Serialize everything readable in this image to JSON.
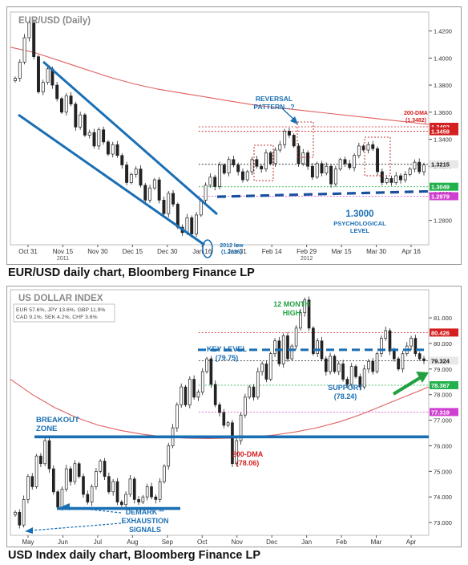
{
  "chart_data": [
    {
      "type": "candlestick",
      "title": "EUR/USD (Daily)",
      "caption": "EUR/USD daily chart, Bloomberg Finance LP",
      "x_labels": [
        "Oct 31",
        "Nov 15",
        "Nov 30",
        "Dec 15",
        "Dec 30",
        "Jan 16",
        "Jan 31",
        "Feb 14",
        "Feb 29",
        "Mar 15",
        "Mar 30",
        "Apr 16"
      ],
      "x_sublabels": [
        {
          "at": "Nov 15",
          "text": "2011"
        },
        {
          "at": "Feb 29",
          "text": "2012"
        }
      ],
      "ylim": [
        1.262,
        1.434
      ],
      "y_ticks": [
        1.42,
        1.4,
        1.38,
        1.36,
        1.34,
        1.32,
        1.3,
        1.28
      ],
      "y_tick_labels": [
        "1.4200",
        "1.4000",
        "1.3800",
        "1.3600",
        "1.3400",
        "1.3200",
        "1.3000",
        "1.2800"
      ],
      "price_markers": [
        {
          "value": 1.3492,
          "label": "1.3492",
          "color": "#d42020"
        },
        {
          "value": 1.3459,
          "label": "1.3459",
          "color": "#d42020"
        },
        {
          "value": 1.3215,
          "label": "1.3215",
          "color": "#222222"
        },
        {
          "value": 1.3049,
          "label": "1.3049",
          "color": "#22b14c"
        },
        {
          "value": 1.2979,
          "label": "1.2979",
          "color": "#d040d0"
        }
      ],
      "dma_200": {
        "label": "200-DMA",
        "value_label": "(1.3482)",
        "color": "#e06060",
        "values": [
          1.408,
          1.404,
          1.398,
          1.392,
          1.386,
          1.381,
          1.377,
          1.374,
          1.371,
          1.368,
          1.365,
          1.363,
          1.361,
          1.359,
          1.357,
          1.355,
          1.353,
          1.351
        ]
      },
      "closes": [
        1.385,
        1.397,
        1.415,
        1.426,
        1.401,
        1.375,
        1.382,
        1.392,
        1.38,
        1.37,
        1.36,
        1.372,
        1.366,
        1.349,
        1.358,
        1.343,
        1.345,
        1.335,
        1.347,
        1.338,
        1.329,
        1.336,
        1.328,
        1.321,
        1.308,
        1.314,
        1.318,
        1.306,
        1.295,
        1.304,
        1.31,
        1.295,
        1.285,
        1.3,
        1.292,
        1.275,
        1.271,
        1.282,
        1.27,
        1.284,
        1.295,
        1.306,
        1.312,
        1.305,
        1.321,
        1.315,
        1.325,
        1.321,
        1.316,
        1.31,
        1.316,
        1.325,
        1.32,
        1.318,
        1.33,
        1.322,
        1.332,
        1.336,
        1.346,
        1.343,
        1.335,
        1.322,
        1.33,
        1.32,
        1.312,
        1.322,
        1.315,
        1.32,
        1.307,
        1.318,
        1.325,
        1.322,
        1.319,
        1.328,
        1.335,
        1.332,
        1.336,
        1.333,
        1.316,
        1.308,
        1.311,
        1.308,
        1.313,
        1.31,
        1.314,
        1.318,
        1.323,
        1.316,
        1.321
      ],
      "annotations": [
        {
          "text": "REVERSAL\nPATTERN...?",
          "color": "#1a6fb4"
        },
        {
          "text": "200-DMA\n(1.3482)",
          "color": "#d42020"
        },
        {
          "text": "1.3000",
          "color": "#1a6fb4"
        },
        {
          "text": "PSYCHOLOGICAL\nLEVEL",
          "color": "#1a6fb4"
        },
        {
          "text": "2012 low\n(1.2626)",
          "color": "#1a6fb4"
        }
      ],
      "colors": {
        "channel": "#1a6fb4",
        "support": "#1a4fa0",
        "dma": "#e06060"
      }
    },
    {
      "type": "candlestick",
      "title": "US DOLLAR INDEX",
      "caption": "USD Index daily chart, Bloomberg Finance LP",
      "info_box": [
        "EUR 57.6%, JPY 13.6%, GBP 11.9%",
        "CAD 9.1%,  SEK 4.2%,  CHF 3.6%"
      ],
      "x_labels": [
        "May",
        "Jun",
        "Jul",
        "Aug",
        "Sep",
        "Oct",
        "Nov",
        "Dec",
        "Jan",
        "Feb",
        "Mar",
        "Apr"
      ],
      "x_sublabels": [
        {
          "at": "Aug",
          "text": "2011"
        },
        {
          "at": "Mar",
          "text": "2012"
        }
      ],
      "ylim": [
        72.5,
        82.1
      ],
      "y_ticks": [
        81,
        80,
        79,
        78,
        77,
        76,
        75,
        74,
        73
      ],
      "y_tick_labels": [
        "81.000",
        "80.000",
        "79.000",
        "78.000",
        "77.000",
        "76.000",
        "75.000",
        "74.000",
        "73.000"
      ],
      "price_markers": [
        {
          "value": 80.426,
          "label": "80.426",
          "color": "#d42020"
        },
        {
          "value": 79.324,
          "label": "79.324",
          "color": "#222222"
        },
        {
          "value": 78.367,
          "label": "78.367",
          "color": "#22b14c"
        },
        {
          "value": 77.319,
          "label": "77.319",
          "color": "#d040d0"
        }
      ],
      "dma_200": {
        "label": "200-DMA",
        "value_label": "(78.06)",
        "color": "#e06060",
        "values": [
          78.6,
          78.0,
          77.5,
          77.1,
          76.8,
          76.6,
          76.45,
          76.35,
          76.3,
          76.28,
          76.3,
          76.35,
          76.42,
          76.55,
          76.72,
          76.95,
          77.25,
          77.6,
          77.95,
          78.3
        ]
      },
      "closes": [
        73.4,
        72.9,
        73.9,
        74.8,
        74.4,
        75.6,
        75.3,
        76.2,
        75.1,
        74.2,
        73.6,
        74.3,
        75.1,
        74.6,
        75.3,
        74.8,
        74.1,
        73.8,
        74.4,
        75.0,
        75.4,
        74.8,
        74.2,
        74.6,
        73.8,
        73.7,
        74.1,
        74.7,
        73.9,
        73.8,
        74.0,
        74.4,
        74.0,
        73.9,
        74.6,
        75.2,
        76.0,
        76.7,
        77.6,
        78.3,
        77.6,
        78.6,
        77.9,
        78.1,
        78.9,
        79.4,
        78.4,
        77.6,
        77.3,
        76.8,
        76.9,
        75.3,
        76.2,
        77.2,
        77.9,
        78.3,
        77.9,
        78.9,
        79.2,
        78.6,
        79.6,
        80.1,
        79.2,
        80.3,
        79.4,
        79.9,
        80.6,
        81.2,
        81.7,
        80.6,
        79.6,
        80.1,
        79.4,
        78.9,
        79.5,
        78.9,
        79.2,
        78.6,
        78.4,
        79.1,
        78.7,
        78.3,
        79.0,
        79.3,
        78.9,
        79.6,
        80.2,
        80.5,
        79.7,
        79.4,
        79.0,
        79.6,
        79.9,
        80.2,
        79.6,
        79.4,
        79.32
      ],
      "annotations": [
        {
          "text": "12 MONTH\nHIGH",
          "color": "#22a040"
        },
        {
          "text": "KEY LEVEL\n(79.75)",
          "color": "#1a6fb4"
        },
        {
          "text": "SUPPORT\n(78.24)",
          "color": "#1a6fb4"
        },
        {
          "text": "BREAKOUT\nZONE",
          "color": "#1a6fb4"
        },
        {
          "text": "200-DMA\n(78.06)",
          "color": "#d42020"
        },
        {
          "text": "DEMARK™\nEXHAUSTION\nSIGNALS",
          "color": "#1a6fb4"
        }
      ],
      "levels": {
        "key_level": 79.75,
        "support": 78.24,
        "breakout_zone": 76.35,
        "demark_base": 73.55
      },
      "colors": {
        "levels": "#1a6fb4",
        "dma": "#e06060",
        "arrow": "#22a040"
      }
    }
  ]
}
